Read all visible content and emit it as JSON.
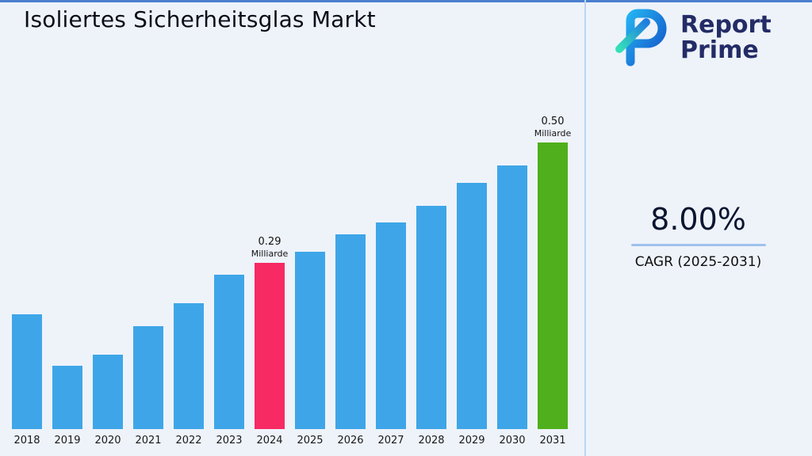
{
  "header": {
    "title": "Isoliertes Sicherheitsglas Markt"
  },
  "logo": {
    "line1": "Report",
    "line2": "Prime"
  },
  "stats": {
    "cagr_value": "8.00%",
    "cagr_label": "CAGR (2025-2031)"
  },
  "colors": {
    "background": "#eef3fa",
    "top_accent": "#4a7fd0",
    "divider": "#bdd5f1",
    "bar_default": "#3EA6E8",
    "bar_highlight_2024": "#F72A64",
    "bar_highlight_2031": "#4FAF1D",
    "logo_navy": "#232c66",
    "underline": "#9fc2ee"
  },
  "chart_data": {
    "type": "bar",
    "title": "Isoliertes Sicherheitsglas Markt",
    "unit": "Milliarde",
    "categories": [
      "2018",
      "2019",
      "2020",
      "2021",
      "2022",
      "2023",
      "2024",
      "2025",
      "2026",
      "2027",
      "2028",
      "2029",
      "2030",
      "2031"
    ],
    "values": [
      0.2,
      0.11,
      0.13,
      0.18,
      0.22,
      0.27,
      0.29,
      0.31,
      0.34,
      0.36,
      0.39,
      0.43,
      0.46,
      0.5
    ],
    "ylim": [
      0,
      0.55
    ],
    "xlabel": "",
    "ylabel": "",
    "grid": false,
    "legend": false,
    "bar_colors": {
      "default": "#3EA6E8",
      "2024": "#F72A64",
      "2031": "#4FAF1D"
    },
    "annotations": {
      "2024": {
        "value_label": "0.29",
        "unit_label": "Milliarde"
      },
      "2031": {
        "value_label": "0.50",
        "unit_label": "Milliarde"
      }
    }
  }
}
